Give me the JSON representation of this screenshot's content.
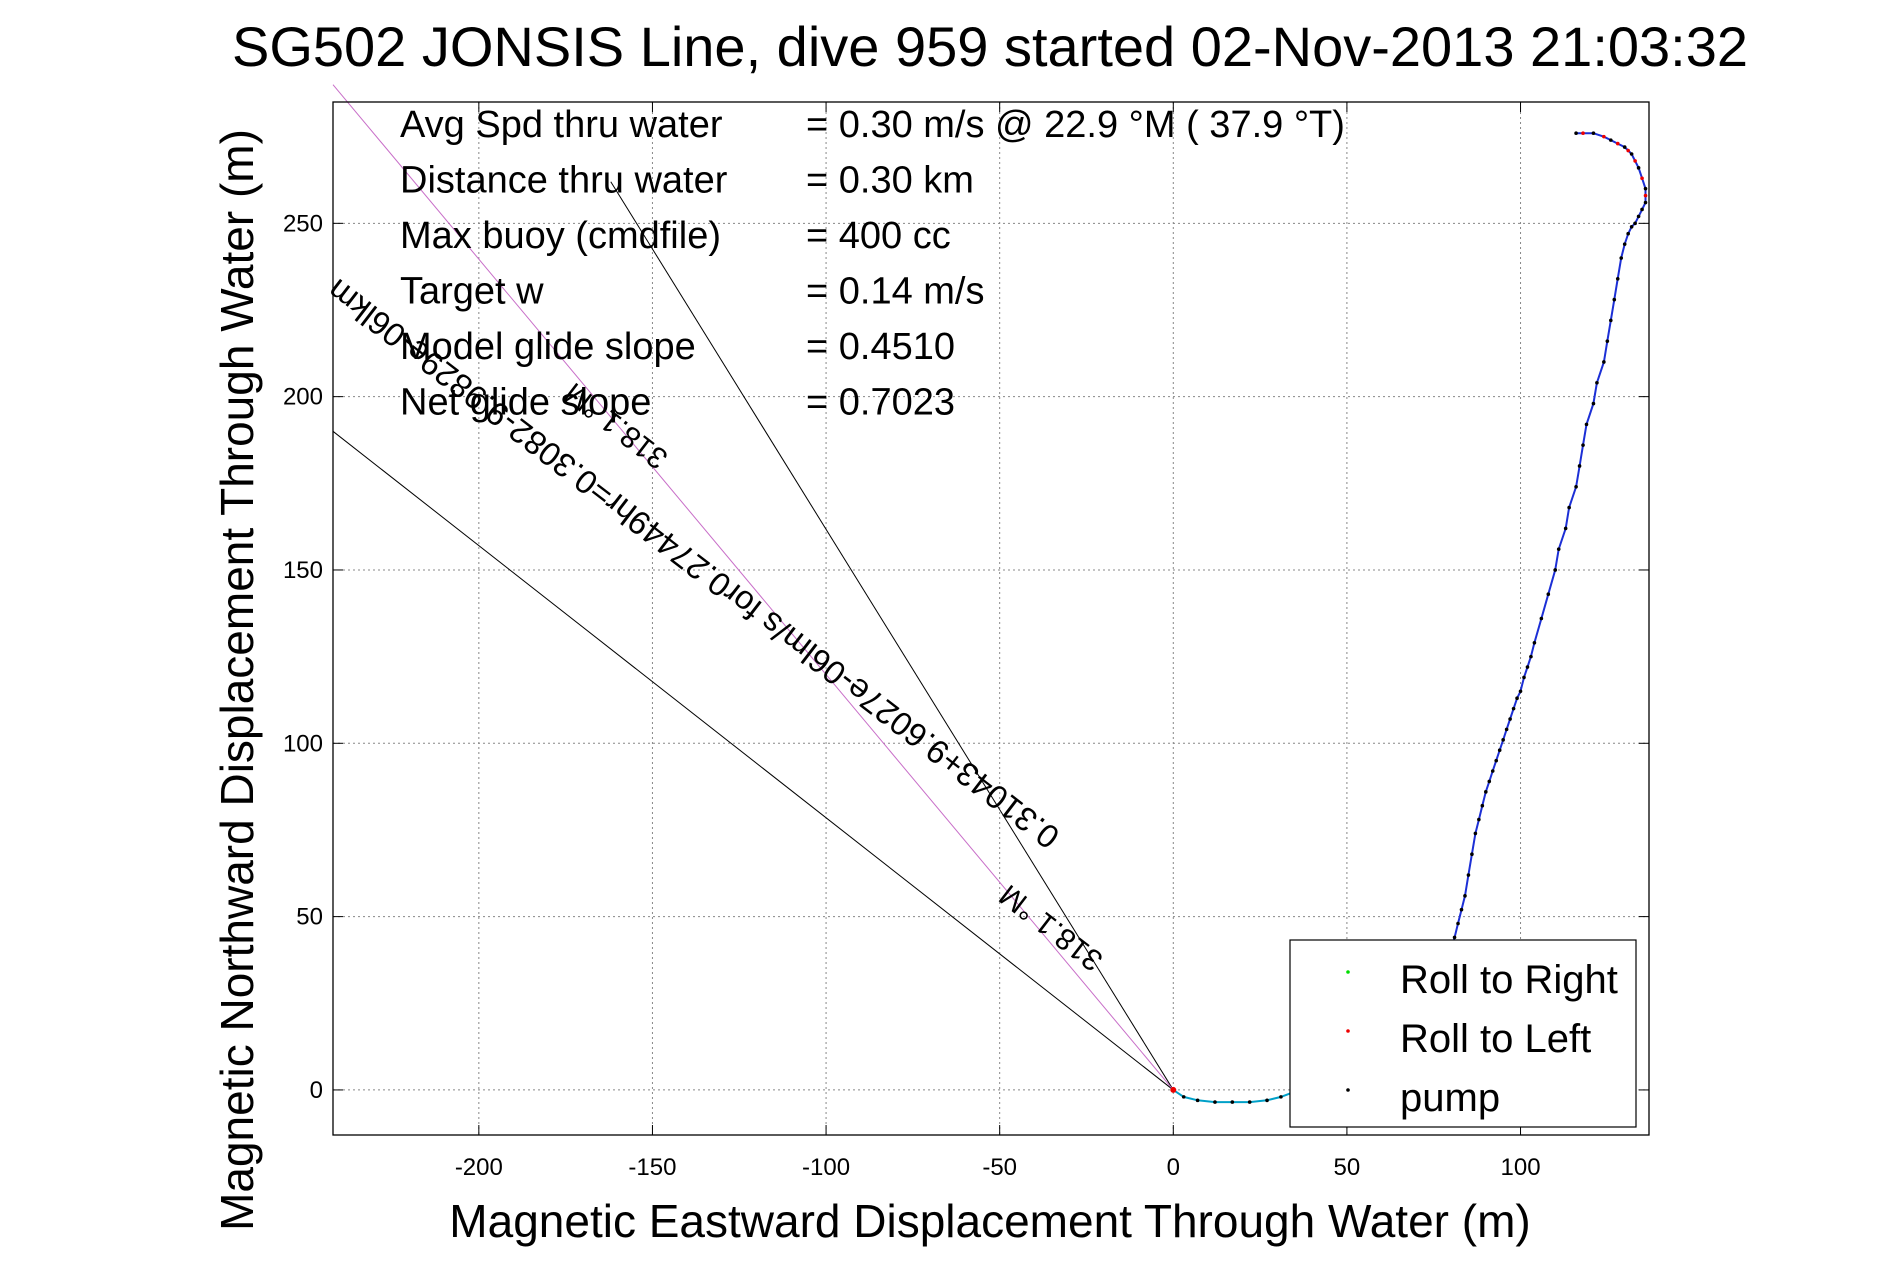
{
  "chart_data": {
    "type": "scatter",
    "title": "SG502 JONSIS Line, dive 959 started 02-Nov-2013 21:03:32",
    "xlabel": "Magnetic Eastward Displacement Through Water (m)",
    "ylabel": "Magnetic Northward Displacement Through Water (m)",
    "xlim": [
      -242,
      137
    ],
    "ylim": [
      -13,
      285
    ],
    "xticks": [
      -200,
      -150,
      -100,
      -50,
      0,
      50,
      100
    ],
    "yticks": [
      0,
      50,
      100,
      150,
      200,
      250
    ],
    "grid": true,
    "legend_position": "bottom-right",
    "info_lines": [
      {
        "label": "Avg Spd thru water",
        "value": "=  0.30 m/s @  22.9 °M ( 37.9 °T)"
      },
      {
        "label": "Distance thru water",
        "value": "=  0.30 km"
      },
      {
        "label": "Max buoy (cmdfile)",
        "value": "= 400 cc"
      },
      {
        "label": "Target w",
        "value": "= 0.14 m/s"
      },
      {
        "label": "Model glide slope",
        "value": "= 0.4510"
      },
      {
        "label": "Net glide slope",
        "value": "= 0.7023"
      }
    ],
    "annotations": [
      "0.31043+9.6027e-06lm/s for0.27449hr=0.3082-9.9829e-06lkm",
      "318.1 °M"
    ],
    "reference_lines": [
      {
        "name": "318.1 °M",
        "from": [
          0,
          0
        ],
        "to": [
          -242,
          190
        ]
      },
      {
        "name": "318.1 °M",
        "from": [
          0,
          0
        ],
        "to": [
          -162,
          262
        ]
      },
      {
        "name": "318.1 °M",
        "from": [
          0,
          0
        ],
        "to": [
          -242,
          290
        ]
      }
    ],
    "track": {
      "x": [
        0,
        3,
        7,
        12,
        17,
        22,
        27,
        31,
        35,
        40,
        46,
        52,
        58,
        64,
        69,
        73,
        77,
        79,
        80,
        81,
        82,
        83,
        84,
        85,
        86,
        87,
        88,
        89,
        90,
        91,
        92,
        93,
        94,
        95,
        96,
        97,
        98,
        99,
        100,
        101,
        102,
        103,
        104,
        106,
        108,
        110,
        111,
        113,
        114,
        116,
        117,
        118,
        119,
        121,
        122,
        124,
        125,
        126,
        127,
        128,
        129,
        130,
        131,
        132,
        133,
        134,
        135,
        136,
        136,
        136,
        135,
        134,
        133,
        132,
        131,
        130,
        128,
        126,
        124,
        121,
        118,
        116
      ],
      "y": [
        0,
        -2,
        -3,
        -3.5,
        -3.5,
        -3.5,
        -3,
        -2,
        -0.5,
        2,
        4,
        7,
        9,
        10,
        13,
        20,
        30,
        36,
        40,
        44,
        48,
        52,
        56,
        62,
        68,
        74,
        78,
        82,
        86,
        89,
        92,
        95,
        98,
        101,
        104,
        107,
        110,
        113,
        115,
        119,
        122,
        125,
        129,
        136,
        143,
        150,
        156,
        162,
        168,
        174,
        180,
        186,
        192,
        198,
        204,
        210,
        216,
        222,
        228,
        234,
        240,
        244,
        247,
        249,
        250,
        252,
        254,
        256,
        258,
        260,
        263,
        266,
        268,
        270,
        271,
        272,
        273,
        274,
        275,
        276,
        276,
        276
      ]
    },
    "series": [
      {
        "name": "Roll to Right",
        "color": "#00dd00"
      },
      {
        "name": "Roll to Left",
        "color": "#ee0000"
      },
      {
        "name": "pump",
        "color": "#000000"
      }
    ],
    "track_colors": {
      "line": "#1c2fd6",
      "ascent": "#00a0c8",
      "heading": "#c86ec8"
    }
  }
}
